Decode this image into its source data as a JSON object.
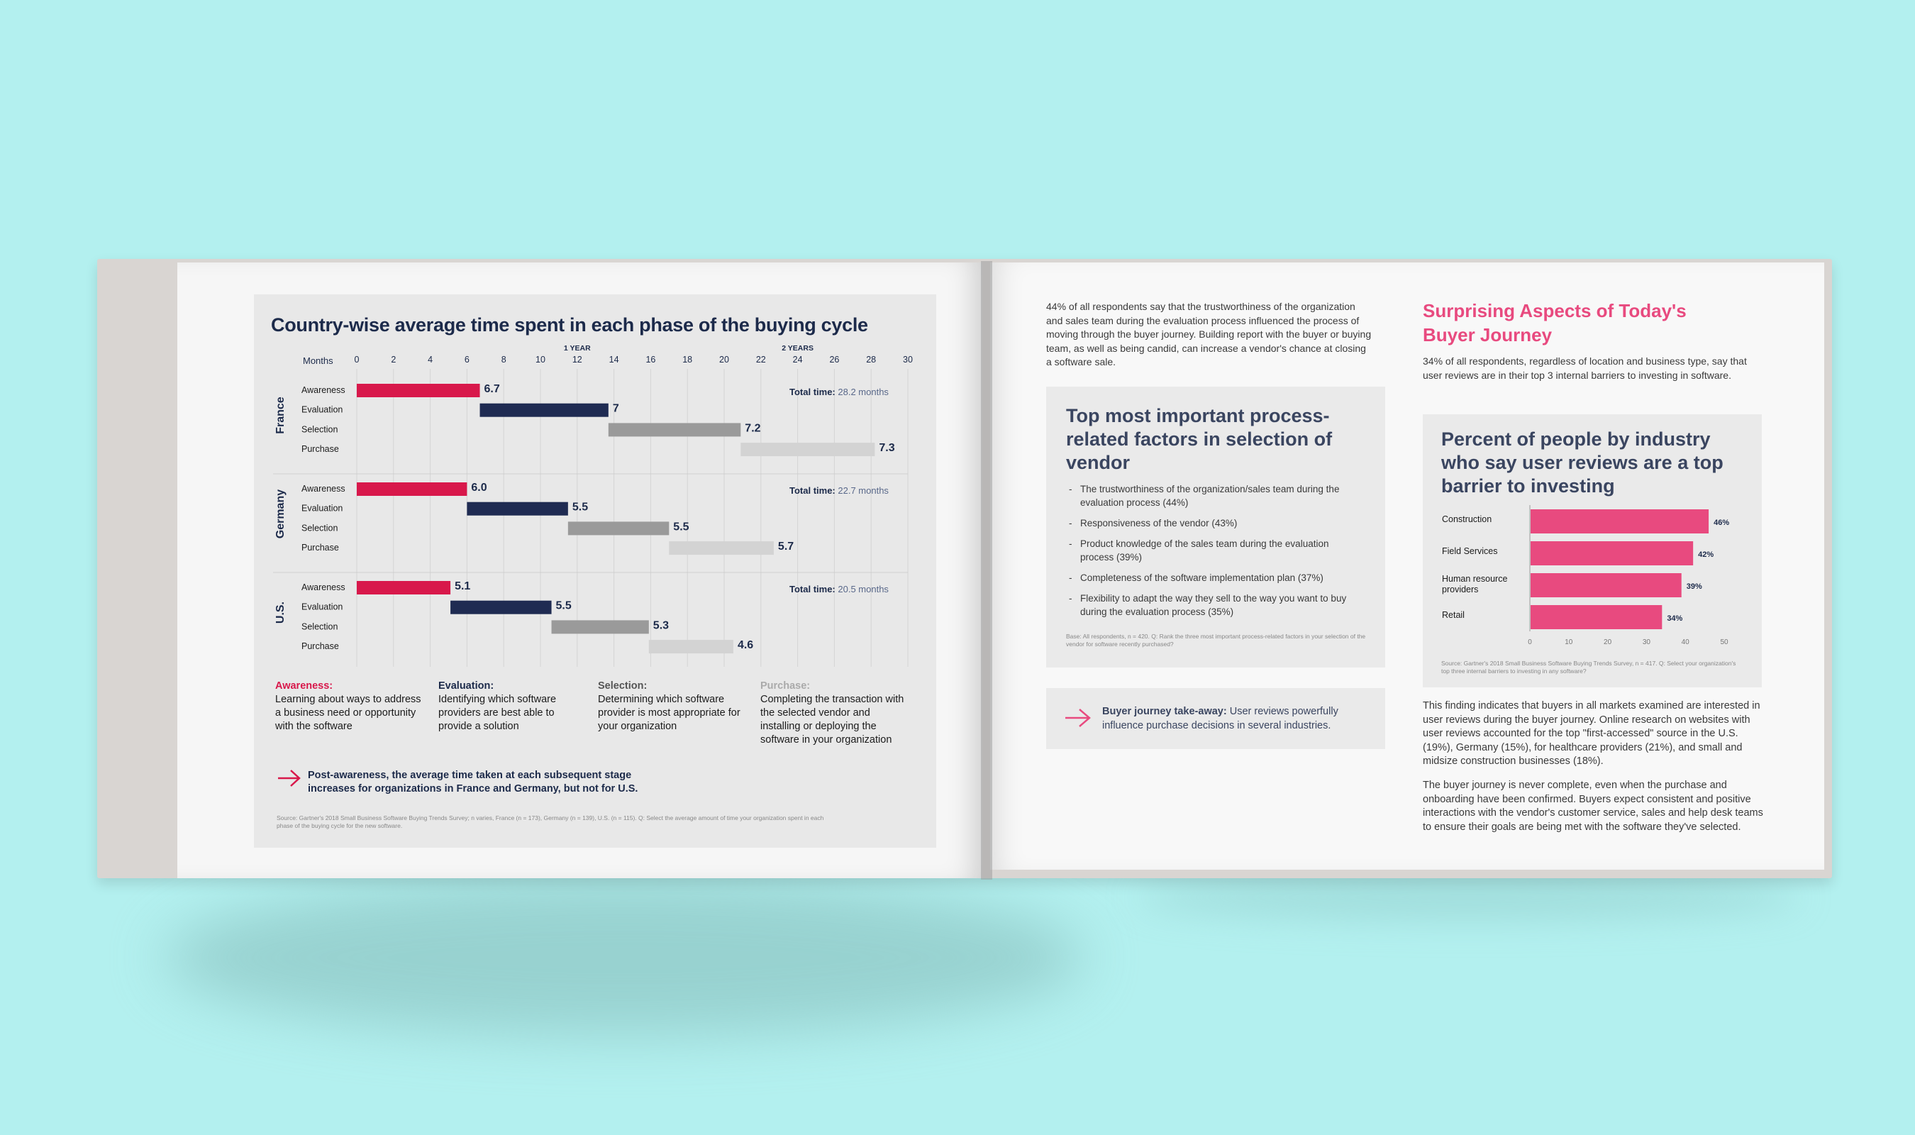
{
  "chart_data": [
    {
      "type": "gantt",
      "title": "Country-wise average time spent in each phase of the buying cycle",
      "xlabel": "Months",
      "xlim": [
        0,
        30
      ],
      "x_ticks": [
        "0",
        "2",
        "4",
        "6",
        "8",
        "10",
        "12",
        "14",
        "16",
        "18",
        "20",
        "22",
        "24",
        "26",
        "28",
        "30"
      ],
      "markers": [
        {
          "label": "1 YEAR",
          "x": 12
        },
        {
          "label": "2 YEARS",
          "x": 24
        }
      ],
      "phases": [
        "Awareness",
        "Evaluation",
        "Selection",
        "Purchase"
      ],
      "phase_colors": [
        "#d8184b",
        "#1f2b52",
        "#9a9a9a",
        "#d3d3d3"
      ],
      "countries": [
        {
          "name": "France",
          "total_label": "Total time:",
          "total_value": "28.2 months",
          "values": [
            6.7,
            7,
            7.2,
            7.3
          ],
          "labels": [
            "6.7",
            "7",
            "7.2",
            "7.3"
          ]
        },
        {
          "name": "Germany",
          "total_label": "Total time:",
          "total_value": "22.7 months",
          "values": [
            6.0,
            5.5,
            5.5,
            5.7
          ],
          "labels": [
            "6.0",
            "5.5",
            "5.5",
            "5.7"
          ]
        },
        {
          "name": "U.S.",
          "total_label": "Total time:",
          "total_value": "20.5 months",
          "values": [
            5.1,
            5.5,
            5.3,
            4.6
          ],
          "labels": [
            "5.1",
            "5.5",
            "5.3",
            "4.6"
          ]
        }
      ]
    },
    {
      "type": "bar",
      "orientation": "horizontal",
      "title": "Percent of people by industry who say user reviews are a top barrier to investing",
      "categories": [
        "Construction",
        "Field Services",
        "Human resource providers",
        "Retail"
      ],
      "values": [
        46,
        42,
        39,
        34
      ],
      "labels": [
        "46%",
        "42%",
        "39%",
        "34%"
      ],
      "xlim": [
        0,
        50
      ],
      "x_ticks": [
        "0",
        "10",
        "20",
        "30",
        "40",
        "50"
      ],
      "color": "#e84a7f"
    }
  ],
  "left_page": {
    "definitions": [
      {
        "head": "Awareness:",
        "body": "Learning about ways to address a business need or opportunity with the software"
      },
      {
        "head": "Evaluation:",
        "body": "Identifying which software providers are best able to provide a solution"
      },
      {
        "head": "Selection:",
        "body": "Determining which software provider is most appropriate for your organization"
      },
      {
        "head": "Purchase:",
        "body": "Completing the transaction with the selected vendor and installing or deploying the software in your organization"
      }
    ],
    "takeaway": "Post-awareness, the average time taken at each subsequent stage increases for organizations in France and Germany, but not for U.S.",
    "source": "Source: Gartner's 2018 Small Business Software Buying Trends Survey; n varies, France (n = 173), Germany (n = 139), U.S. (n = 115). Q: Select the average amount of time your organization spent in each phase of the buying cycle for the new software."
  },
  "right_page": {
    "intro": "44% of all respondents say that the trustworthiness of the organization and sales team during the evaluation process influenced the process of moving through the buyer journey. Building report with the buyer or buying team, as well as being candid, can increase a vendor's chance at closing a software sale.",
    "factors_box": {
      "title": "Top most important process-related factors in selection of vendor",
      "items": [
        "The trustworthiness of the organization/sales team during the evaluation process (44%)",
        "Responsiveness of the vendor (43%)",
        "Product knowledge of the sales team during the evaluation process (39%)",
        "Completeness of the software implementation plan (37%)",
        "Flexibility to adapt the way they sell to the way you want to buy during the evaluation process (35%)"
      ],
      "source": "Base: All respondents, n = 420. Q: Rank the three most important process-related factors in your selection of the vendor for software recently purchased?"
    },
    "journey_takeaway": {
      "head": "Buyer journey take-away:",
      "body": "User reviews powerfully influence purchase decisions in several industries."
    },
    "section_title": "Surprising Aspects of Today's Buyer Journey",
    "section_intro": "34% of all respondents, regardless of location and business type, say that user reviews are in their top 3 internal barriers to investing in software.",
    "bar_source": "Source: Gartner's 2018 Small Business Software Buying Trends Survey, n = 417. Q: Select your organization's top three internal barriers to investing in any software?",
    "para1": "This finding indicates that buyers in all markets examined are interested in user reviews during the buyer journey. Online research on websites with user reviews accounted for the top \"first-accessed\" source in the U.S. (19%), Germany (15%), for healthcare providers (21%), and small and midsize construction businesses (18%).",
    "para2": "The buyer journey is never complete, even when the purchase and onboarding have been confirmed. Buyers expect consistent and positive interactions with the vendor's customer service, sales and help desk teams to ensure their goals are being met with the software they've selected."
  }
}
